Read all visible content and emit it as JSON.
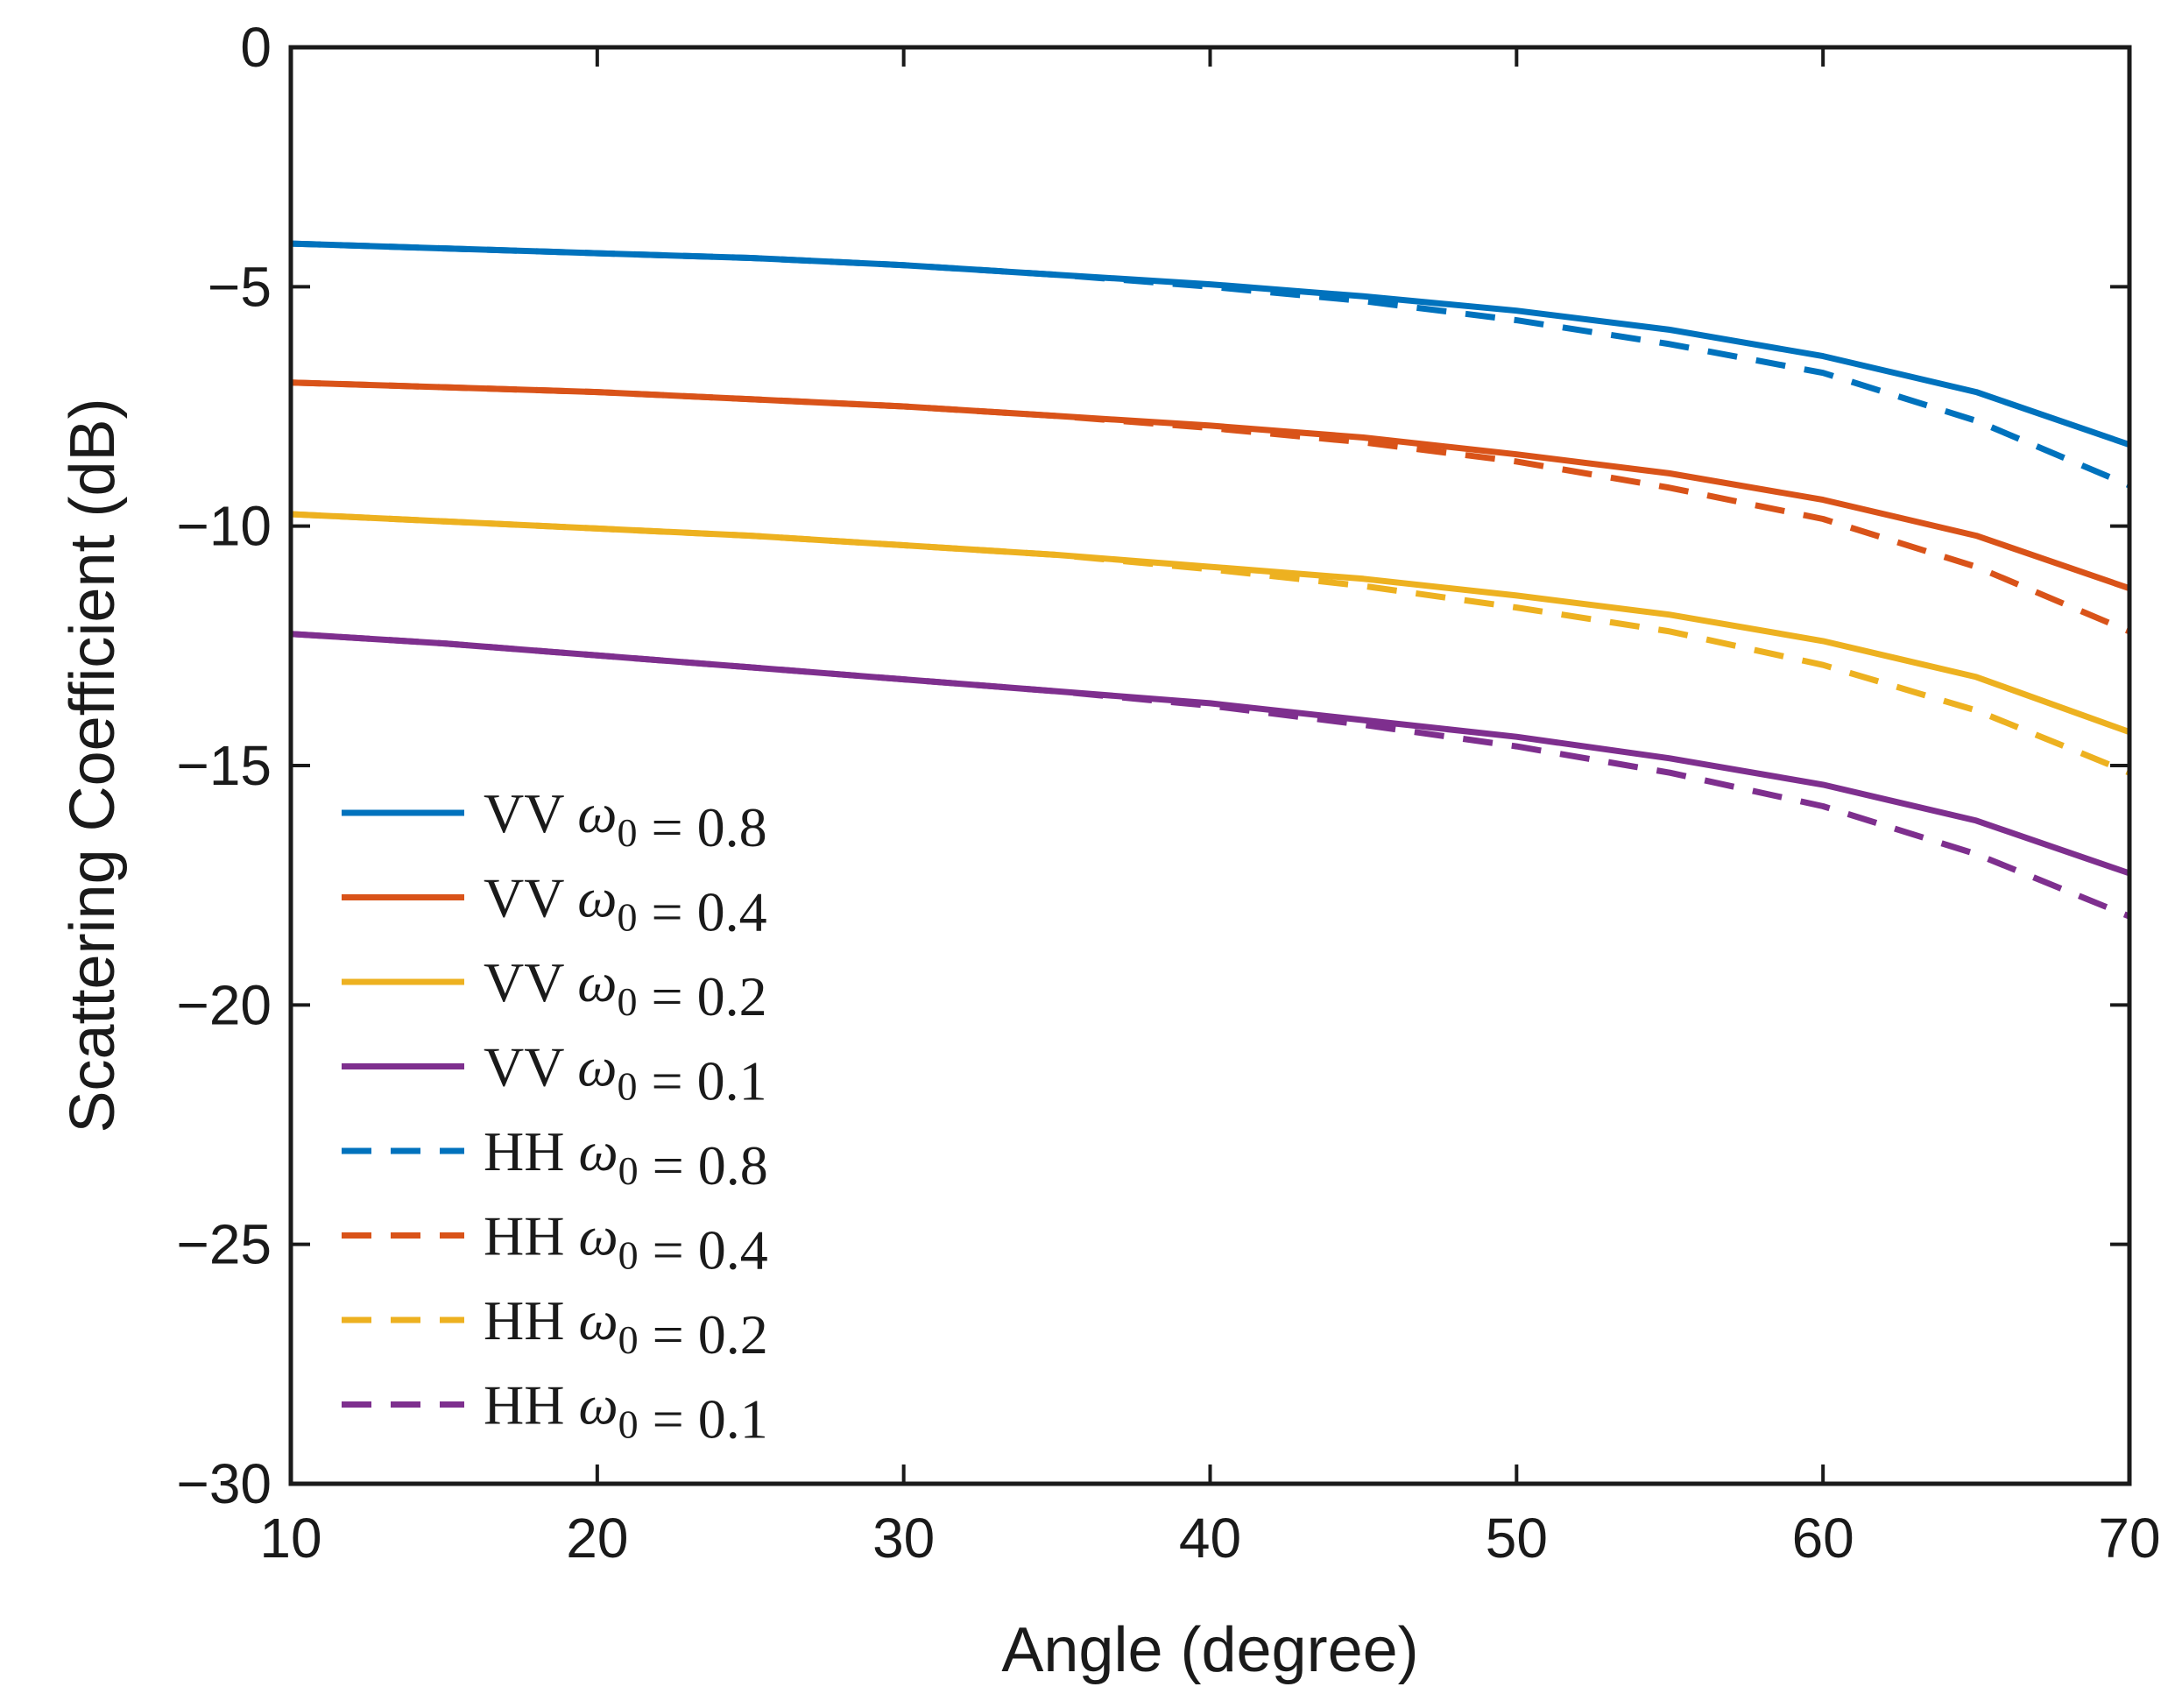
{
  "chart_data": {
    "type": "line",
    "title": "",
    "xlabel": "Angle (degree)",
    "ylabel": "Scattering Coefficient (dB)",
    "xlim": [
      10,
      70
    ],
    "ylim": [
      -30,
      0
    ],
    "xticks": [
      10,
      20,
      30,
      40,
      50,
      60,
      70
    ],
    "yticks": [
      0,
      -5,
      -10,
      -15,
      -20,
      -25,
      -30
    ],
    "xtick_labels": [
      "10",
      "20",
      "30",
      "40",
      "50",
      "60",
      "70"
    ],
    "ytick_labels": [
      "0",
      "−5",
      "−10",
      "−15",
      "−20",
      "−25",
      "−30"
    ],
    "legend_position": "bottom-left",
    "x": [
      10,
      15,
      20,
      25,
      30,
      35,
      40,
      45,
      50,
      55,
      60,
      65,
      70
    ],
    "series": [
      {
        "name": "VV ω₀ = 0.8",
        "pol": "VV",
        "omega": "0.8",
        "color": "#0072BD",
        "dash": "solid",
        "values": [
          -4.1,
          -4.2,
          -4.3,
          -4.4,
          -4.55,
          -4.75,
          -4.95,
          -5.2,
          -5.5,
          -5.9,
          -6.45,
          -7.2,
          -8.3
        ]
      },
      {
        "name": "VV ω₀ = 0.4",
        "pol": "VV",
        "omega": "0.4",
        "color": "#D95319",
        "dash": "solid",
        "values": [
          -7.0,
          -7.1,
          -7.2,
          -7.35,
          -7.5,
          -7.7,
          -7.9,
          -8.15,
          -8.5,
          -8.9,
          -9.45,
          -10.2,
          -11.3
        ]
      },
      {
        "name": "VV ω₀ = 0.2",
        "pol": "VV",
        "omega": "0.2",
        "color": "#EDB120",
        "dash": "solid",
        "values": [
          -9.75,
          -9.9,
          -10.05,
          -10.2,
          -10.4,
          -10.6,
          -10.85,
          -11.1,
          -11.45,
          -11.85,
          -12.4,
          -13.15,
          -14.3
        ]
      },
      {
        "name": "VV ω₀ = 0.1",
        "pol": "VV",
        "omega": "0.1",
        "color": "#7E2F8E",
        "dash": "solid",
        "values": [
          -12.25,
          -12.45,
          -12.7,
          -12.95,
          -13.2,
          -13.45,
          -13.7,
          -14.05,
          -14.4,
          -14.85,
          -15.4,
          -16.15,
          -17.25
        ]
      },
      {
        "name": "HH ω₀ = 0.8",
        "pol": "HH",
        "omega": "0.8",
        "color": "#0072BD",
        "dash": "dashed",
        "values": [
          -4.1,
          -4.2,
          -4.3,
          -4.4,
          -4.55,
          -4.75,
          -5.0,
          -5.3,
          -5.7,
          -6.2,
          -6.8,
          -7.8,
          -9.15
        ]
      },
      {
        "name": "HH ω₀ = 0.4",
        "pol": "HH",
        "omega": "0.4",
        "color": "#D95319",
        "dash": "dashed",
        "values": [
          -7.0,
          -7.1,
          -7.2,
          -7.35,
          -7.5,
          -7.7,
          -7.95,
          -8.25,
          -8.65,
          -9.2,
          -9.85,
          -10.85,
          -12.2
        ]
      },
      {
        "name": "HH ω₀ = 0.2",
        "pol": "HH",
        "omega": "0.2",
        "color": "#EDB120",
        "dash": "dashed",
        "values": [
          -9.75,
          -9.9,
          -10.05,
          -10.2,
          -10.4,
          -10.6,
          -10.9,
          -11.25,
          -11.7,
          -12.2,
          -12.9,
          -13.85,
          -15.15
        ]
      },
      {
        "name": "HH ω₀ = 0.1",
        "pol": "HH",
        "omega": "0.1",
        "color": "#7E2F8E",
        "dash": "dashed",
        "values": [
          -12.25,
          -12.45,
          -12.7,
          -12.95,
          -13.2,
          -13.45,
          -13.75,
          -14.15,
          -14.6,
          -15.15,
          -15.85,
          -16.85,
          -18.15
        ]
      }
    ]
  }
}
